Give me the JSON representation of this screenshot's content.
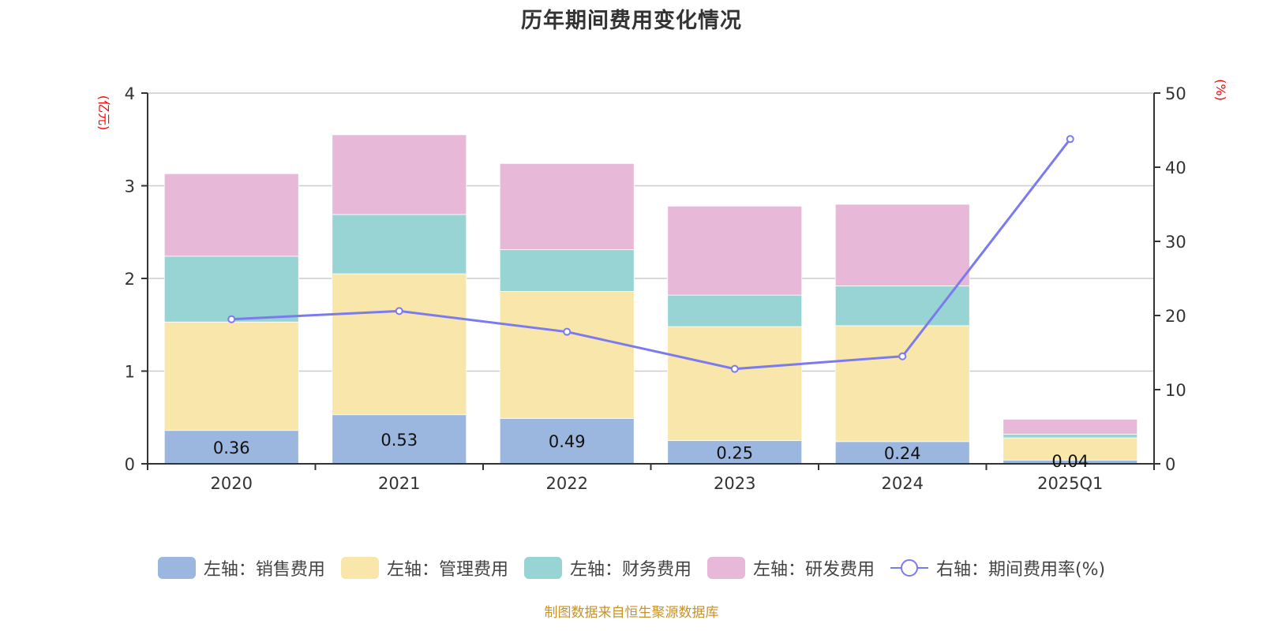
{
  "chart_data": {
    "type": "bar",
    "stacked": true,
    "title": "历年期间费用变化情况",
    "categories": [
      "2020",
      "2021",
      "2022",
      "2023",
      "2024",
      "2025Q1"
    ],
    "series": [
      {
        "name": "左轴：销售费用",
        "axis": "left",
        "type": "bar",
        "color": "#9bb7e0",
        "values": [
          0.36,
          0.53,
          0.49,
          0.25,
          0.24,
          0.04
        ],
        "labels": [
          "0.36",
          "0.53",
          "0.49",
          "0.25",
          "0.24",
          "0.04"
        ]
      },
      {
        "name": "左轴：管理费用",
        "axis": "left",
        "type": "bar",
        "color": "#f8e6aa",
        "values": [
          1.17,
          1.52,
          1.37,
          1.23,
          1.25,
          0.24
        ]
      },
      {
        "name": "左轴：财务费用",
        "axis": "left",
        "type": "bar",
        "color": "#98d4d4",
        "values": [
          0.71,
          0.64,
          0.45,
          0.34,
          0.43,
          0.04
        ]
      },
      {
        "name": "左轴：研发费用",
        "axis": "left",
        "type": "bar",
        "color": "#e8b8d8",
        "values": [
          0.89,
          0.86,
          0.93,
          0.96,
          0.88,
          0.16
        ]
      },
      {
        "name": "右轴：期间费用率(%)",
        "axis": "right",
        "type": "line",
        "color": "#7b7bef",
        "values": [
          19.5,
          20.6,
          17.8,
          12.8,
          14.5,
          43.8
        ]
      }
    ],
    "left_axis": {
      "label": "(亿元)",
      "range": [
        0,
        4
      ],
      "ticks": [
        "0",
        "1",
        "2",
        "3",
        "4"
      ]
    },
    "right_axis": {
      "label": "(%)",
      "range": [
        0,
        50
      ],
      "ticks": [
        "0",
        "10",
        "20",
        "30",
        "40",
        "50"
      ]
    },
    "grid": true,
    "legend_position": "bottom"
  },
  "source": "制图数据来自恒生聚源数据库"
}
